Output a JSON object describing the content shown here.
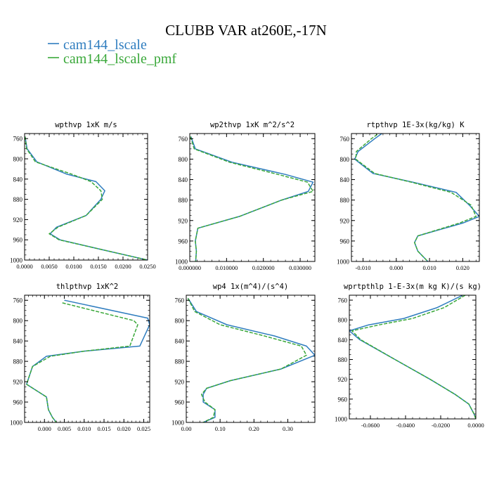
{
  "figure": {
    "title": "CLUBB VAR at260E,-17N",
    "legend": [
      {
        "label": "cam144_lscale",
        "color": "#2f7dbf"
      },
      {
        "label": "cam144_lscale_pmf",
        "color": "#3aa83a"
      }
    ]
  },
  "chart_data": [
    {
      "type": "line",
      "title": "wpthvp  1xK m/s",
      "xlim": [
        0,
        0.025
      ],
      "ylim": [
        1000,
        750
      ],
      "xticks": [
        0,
        0.005,
        0.01,
        0.015,
        0.02,
        0.025
      ],
      "xtick_labels": [
        "0.0000",
        "0.0050",
        "0.0100",
        "0.0150",
        "0.0200",
        "0.0250"
      ],
      "yticks": [
        760,
        800,
        840,
        880,
        920,
        960,
        1000
      ],
      "ytick_labels": [
        "760",
        "800",
        "840",
        "880",
        "920",
        "960",
        "1000"
      ],
      "series": [
        {
          "name": "cam144_lscale",
          "line": "solid",
          "y": [
            756,
            780,
            806,
            830,
            845,
            863,
            880,
            912,
            935,
            948,
            960,
            980,
            1000
          ],
          "x": [
            0.0001,
            0.0005,
            0.0025,
            0.0085,
            0.0145,
            0.0163,
            0.0155,
            0.0125,
            0.0065,
            0.0052,
            0.0072,
            0.016,
            0.025
          ]
        },
        {
          "name": "cam144_lscale_pmf",
          "line": "dashed",
          "y": [
            756,
            780,
            806,
            830,
            845,
            863,
            880,
            912,
            935,
            948,
            960,
            980,
            1000
          ],
          "x": [
            0.0001,
            0.0004,
            0.0022,
            0.0095,
            0.0135,
            0.0155,
            0.0158,
            0.0125,
            0.0068,
            0.005,
            0.007,
            0.016,
            0.025
          ]
        }
      ]
    },
    {
      "type": "line",
      "title": "wp2thvp  1xK m^2/s^2",
      "xlim": [
        0,
        0.034
      ],
      "ylim": [
        1000,
        750
      ],
      "xticks": [
        0,
        0.01,
        0.02,
        0.03
      ],
      "xtick_labels": [
        "0.000000",
        "0.010000",
        "0.020000",
        "0.030000"
      ],
      "yticks": [
        760,
        800,
        840,
        880,
        920,
        960,
        1000
      ],
      "ytick_labels": [
        "760",
        "800",
        "840",
        "880",
        "920",
        "960",
        "1000"
      ],
      "series": [
        {
          "name": "cam144_lscale",
          "line": "solid",
          "y": [
            756,
            780,
            806,
            830,
            845,
            863,
            880,
            912,
            935,
            960,
            980,
            1000
          ],
          "x": [
            0.0003,
            0.0015,
            0.0115,
            0.026,
            0.0335,
            0.0322,
            0.025,
            0.0135,
            0.0022,
            0.0015,
            0.0018,
            0.0016
          ]
        },
        {
          "name": "cam144_lscale_pmf",
          "line": "dashed",
          "y": [
            756,
            780,
            806,
            830,
            845,
            863,
            880,
            912,
            935,
            960,
            980,
            1000
          ],
          "x": [
            0.0002,
            0.0012,
            0.0108,
            0.024,
            0.032,
            0.0335,
            0.025,
            0.0135,
            0.0022,
            0.0015,
            0.0018,
            0.0016
          ]
        }
      ]
    },
    {
      "type": "line",
      "title": "rtpthvp  1E-3x(kg/kg) K",
      "xlim": [
        -0.0135,
        0.025
      ],
      "ylim": [
        1000,
        750
      ],
      "xticks": [
        -0.01,
        0,
        0.01,
        0.02
      ],
      "xtick_labels": [
        "-0.010",
        "0.000",
        "0.010",
        "0.020"
      ],
      "yticks": [
        760,
        800,
        840,
        880,
        920,
        960,
        1000
      ],
      "ytick_labels": [
        "760",
        "800",
        "840",
        "880",
        "920",
        "960",
        "1000"
      ],
      "series": [
        {
          "name": "cam144_lscale",
          "line": "solid",
          "y": [
            746,
            760,
            785,
            800,
            828,
            845,
            865,
            890,
            912,
            925,
            950,
            963,
            980,
            1000
          ],
          "x": [
            -0.0035,
            -0.0065,
            -0.0115,
            -0.0125,
            -0.007,
            0.005,
            0.018,
            0.022,
            0.025,
            0.02,
            0.0065,
            0.0055,
            0.0065,
            0.0095
          ]
        },
        {
          "name": "cam144_lscale_pmf",
          "line": "dashed",
          "y": [
            746,
            760,
            785,
            800,
            828,
            845,
            865,
            890,
            912,
            925,
            950,
            963,
            980,
            1000
          ],
          "x": [
            -0.0045,
            -0.0075,
            -0.012,
            -0.0122,
            -0.0065,
            0.0045,
            0.0165,
            0.0225,
            0.024,
            0.019,
            0.0065,
            0.0055,
            0.0065,
            0.0095
          ]
        }
      ]
    },
    {
      "type": "line",
      "title": "thlpthvp  1xK^2",
      "xlim": [
        -0.005,
        0.0265
      ],
      "ylim": [
        1000,
        750
      ],
      "xticks": [
        0,
        0.005,
        0.01,
        0.015,
        0.02,
        0.025
      ],
      "xtick_labels": [
        "0.000",
        "0.005",
        "0.010",
        "0.015",
        "0.020",
        "0.025"
      ],
      "yticks": [
        760,
        800,
        840,
        880,
        920,
        960,
        1000
      ],
      "ytick_labels": [
        "760",
        "800",
        "840",
        "880",
        "920",
        "960",
        "1000"
      ],
      "series": [
        {
          "name": "cam144_lscale",
          "line": "solid",
          "y": [
            760,
            795,
            808,
            850,
            860,
            870,
            890,
            925,
            950,
            975,
            990,
            1000
          ],
          "x": [
            0.005,
            0.026,
            0.0265,
            0.024,
            0.01,
            0.0005,
            -0.003,
            -0.0045,
            0.0005,
            0.001,
            0.002,
            0.003
          ]
        },
        {
          "name": "cam144_lscale_pmf",
          "line": "dashed",
          "y": [
            765,
            800,
            808,
            850,
            860,
            870,
            890,
            925,
            950,
            975,
            990,
            1000
          ],
          "x": [
            0.0045,
            0.0225,
            0.0235,
            0.0215,
            0.01,
            0.0015,
            -0.003,
            -0.0045,
            0.0005,
            0.001,
            0.002,
            0.003
          ]
        }
      ]
    },
    {
      "type": "line",
      "title": "wp4  1x(m^4)/(s^4)",
      "xlim": [
        0,
        0.38
      ],
      "ylim": [
        1000,
        750
      ],
      "xticks": [
        0,
        0.1,
        0.2,
        0.3
      ],
      "xtick_labels": [
        "0.00",
        "0.10",
        "0.20",
        "0.30"
      ],
      "yticks": [
        760,
        800,
        840,
        880,
        920,
        960,
        1000
      ],
      "ytick_labels": [
        "760",
        "800",
        "840",
        "880",
        "920",
        "960",
        "1000"
      ],
      "series": [
        {
          "name": "cam144_lscale",
          "line": "solid",
          "y": [
            756,
            782,
            808,
            830,
            850,
            868,
            895,
            918,
            933,
            945,
            960,
            975,
            990,
            1000
          ],
          "x": [
            0.005,
            0.03,
            0.12,
            0.26,
            0.355,
            0.38,
            0.28,
            0.13,
            0.06,
            0.05,
            0.05,
            0.085,
            0.085,
            0.05
          ]
        },
        {
          "name": "cam144_lscale_pmf",
          "line": "dashed",
          "y": [
            756,
            782,
            808,
            830,
            850,
            868,
            895,
            918,
            933,
            945,
            960,
            975,
            990,
            1000
          ],
          "x": [
            0.005,
            0.025,
            0.1,
            0.23,
            0.34,
            0.355,
            0.28,
            0.13,
            0.06,
            0.045,
            0.055,
            0.085,
            0.08,
            0.05
          ]
        }
      ]
    },
    {
      "type": "line",
      "title": "wprtpthlp  1-E-3x(m kg K)/(s kg)",
      "xlim": [
        -0.072,
        0
      ],
      "ylim": [
        1000,
        750
      ],
      "xticks": [
        -0.06,
        -0.04,
        -0.02,
        0
      ],
      "xtick_labels": [
        "-0.0600",
        "-0.0400",
        "-0.0200",
        "0.0000"
      ],
      "yticks": [
        760,
        800,
        840,
        880,
        920,
        960,
        1000
      ],
      "ytick_labels": [
        "760",
        "800",
        "840",
        "880",
        "920",
        "960",
        "1000"
      ],
      "series": [
        {
          "name": "cam144_lscale",
          "line": "solid",
          "y": [
            750,
            775,
            797,
            810,
            822,
            840,
            880,
            920,
            950,
            970,
            990,
            1000
          ],
          "x": [
            -0.0075,
            -0.022,
            -0.041,
            -0.061,
            -0.072,
            -0.066,
            -0.046,
            -0.026,
            -0.012,
            -0.004,
            -0.001,
            0
          ]
        },
        {
          "name": "cam144_lscale_pmf",
          "line": "dashed",
          "y": [
            750,
            775,
            797,
            810,
            822,
            840,
            880,
            920,
            950,
            970,
            990,
            1000
          ],
          "x": [
            -0.006,
            -0.018,
            -0.036,
            -0.055,
            -0.0705,
            -0.0655,
            -0.046,
            -0.026,
            -0.012,
            -0.004,
            -0.001,
            0
          ]
        }
      ]
    }
  ]
}
